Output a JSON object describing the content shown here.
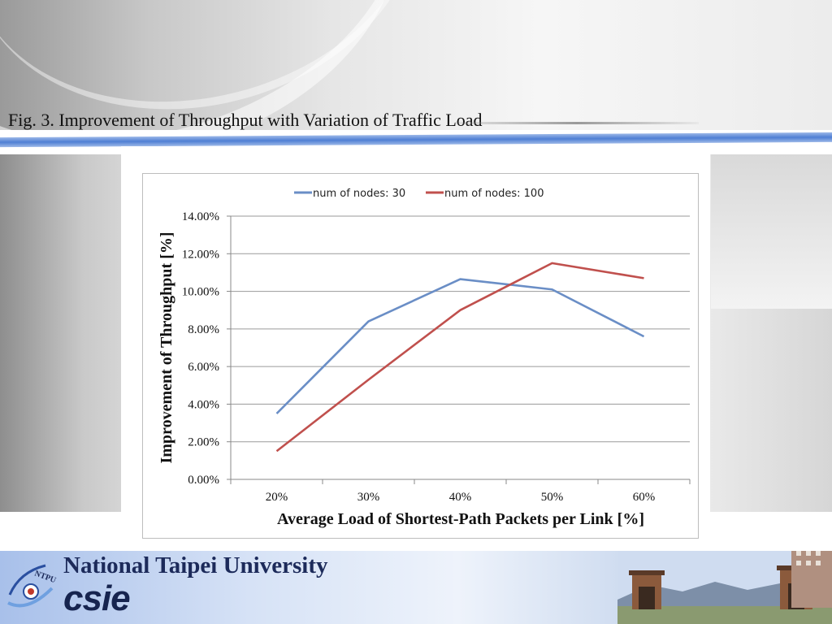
{
  "slide": {
    "title": "Fig. 3. Improvement of Throughput with Variation of Traffic Load"
  },
  "footer": {
    "university": "National Taipei University",
    "department": "csie",
    "logo_text": "NTPU"
  },
  "colors": {
    "series_1": "#6a8ec6",
    "series_2": "#c0504d",
    "stripe": "#4f7fd4",
    "gridline": "#9a9a9a"
  },
  "chart_data": {
    "type": "line",
    "categories": [
      "20%",
      "30%",
      "40%",
      "50%",
      "60%"
    ],
    "series": [
      {
        "name": "num of nodes: 30",
        "values": [
          3.5,
          8.4,
          10.65,
          10.1,
          7.6
        ]
      },
      {
        "name": "num of nodes: 100",
        "values": [
          1.5,
          5.3,
          9.0,
          11.5,
          10.7
        ]
      }
    ],
    "y_ticks": [
      "0.00%",
      "2.00%",
      "4.00%",
      "6.00%",
      "8.00%",
      "10.00%",
      "12.00%",
      "14.00%"
    ],
    "ylim": [
      0,
      14
    ],
    "xlabel": "Average Load of Shortest-Path Packets per Link [%]",
    "ylabel": "Improvement of Throughput [%]",
    "grid": "horizontal",
    "legend_position": "top"
  }
}
